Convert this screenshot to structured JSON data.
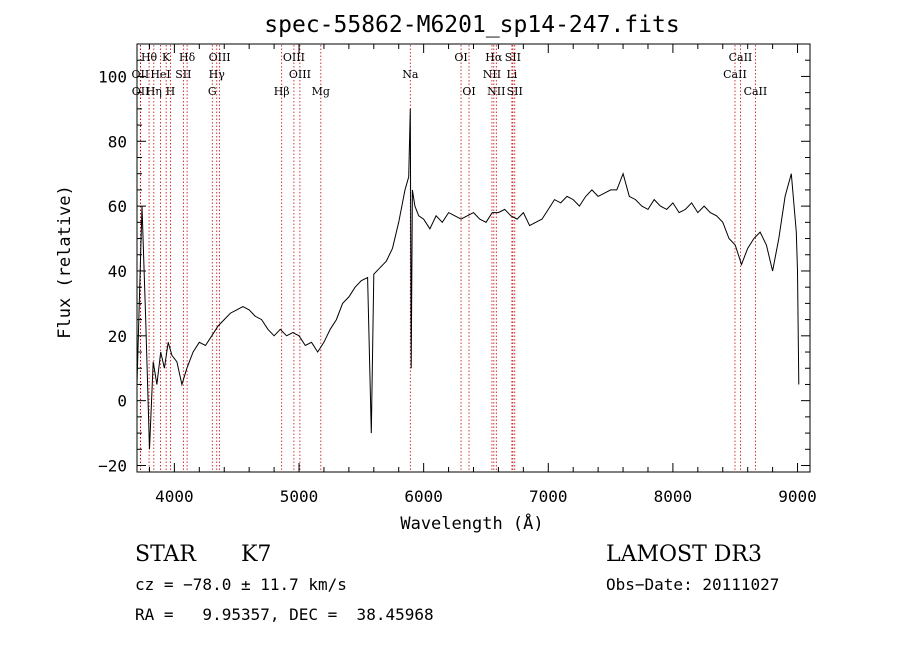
{
  "chart_data": {
    "type": "line",
    "title": "spec-55862-M6201_sp14-247.fits",
    "xlabel": "Wavelength (Å)",
    "ylabel": "Flux (relative)",
    "xlim": [
      3700,
      9100
    ],
    "ylim": [
      -22,
      110
    ],
    "xticks": [
      4000,
      5000,
      6000,
      7000,
      8000,
      9000
    ],
    "yticks": [
      -20,
      0,
      20,
      40,
      60,
      80,
      100
    ],
    "grid": false,
    "series": [
      {
        "name": "spectrum",
        "x": [
          3700,
          3740,
          3770,
          3800,
          3830,
          3860,
          3890,
          3920,
          3950,
          3980,
          4020,
          4060,
          4100,
          4150,
          4200,
          4250,
          4300,
          4350,
          4400,
          4450,
          4500,
          4550,
          4600,
          4650,
          4700,
          4750,
          4800,
          4850,
          4900,
          4950,
          5000,
          5050,
          5100,
          5150,
          5200,
          5250,
          5300,
          5350,
          5400,
          5450,
          5500,
          5550,
          5580,
          5600,
          5650,
          5700,
          5750,
          5800,
          5850,
          5880,
          5893,
          5900,
          5910,
          5930,
          5960,
          6000,
          6050,
          6100,
          6150,
          6200,
          6250,
          6300,
          6350,
          6400,
          6450,
          6500,
          6550,
          6600,
          6650,
          6700,
          6750,
          6800,
          6850,
          6900,
          6950,
          7000,
          7050,
          7100,
          7150,
          7200,
          7250,
          7300,
          7350,
          7400,
          7450,
          7500,
          7550,
          7600,
          7650,
          7700,
          7750,
          7800,
          7850,
          7900,
          7950,
          8000,
          8050,
          8100,
          8150,
          8200,
          8250,
          8300,
          8350,
          8400,
          8450,
          8500,
          8550,
          8600,
          8650,
          8700,
          8750,
          8800,
          8850,
          8900,
          8950,
          8990,
          9000,
          9010
        ],
        "values": [
          5,
          60,
          25,
          -15,
          12,
          5,
          15,
          10,
          18,
          14,
          12,
          5,
          10,
          15,
          18,
          17,
          20,
          23,
          25,
          27,
          28,
          29,
          28,
          26,
          25,
          22,
          20,
          22,
          20,
          21,
          20,
          17,
          18,
          15,
          18,
          22,
          25,
          30,
          32,
          35,
          37,
          38,
          -10,
          39,
          41,
          43,
          47,
          55,
          65,
          69,
          90,
          10,
          65,
          60,
          57,
          56,
          53,
          57,
          55,
          58,
          57,
          56,
          57,
          58,
          56,
          55,
          58,
          58,
          59,
          57,
          56,
          58,
          54,
          55,
          56,
          59,
          62,
          61,
          63,
          62,
          60,
          63,
          65,
          63,
          64,
          65,
          65,
          70,
          63,
          62,
          60,
          59,
          62,
          60,
          59,
          61,
          58,
          59,
          61,
          58,
          60,
          58,
          57,
          55,
          50,
          48,
          42,
          47,
          50,
          52,
          48,
          40,
          50,
          63,
          70,
          52,
          40,
          5
        ]
      }
    ],
    "line_markers": [
      {
        "label": "Hθ",
        "x": 3797,
        "row": 1
      },
      {
        "label": "K",
        "x": 3934,
        "row": 1
      },
      {
        "label": "Hδ",
        "x": 4102,
        "row": 1
      },
      {
        "label": "OIII",
        "x": 4363,
        "row": 1
      },
      {
        "label": "OIII",
        "x": 4959,
        "row": 1
      },
      {
        "label": "Na",
        "x": 5893,
        "row": 2
      },
      {
        "label": "OI",
        "x": 6300,
        "row": 1
      },
      {
        "label": "Hα",
        "x": 6563,
        "row": 1
      },
      {
        "label": "SII",
        "x": 6716,
        "row": 1
      },
      {
        "label": "CaII",
        "x": 8542,
        "row": 1
      },
      {
        "label": "OII",
        "x": 3727,
        "row": 2
      },
      {
        "label": "HeI",
        "x": 3889,
        "row": 2
      },
      {
        "label": "SII",
        "x": 4072,
        "row": 2
      },
      {
        "label": "Hγ",
        "x": 4340,
        "row": 2
      },
      {
        "label": "OIII",
        "x": 5007,
        "row": 2
      },
      {
        "label": "NII",
        "x": 6548,
        "row": 2
      },
      {
        "label": "Li",
        "x": 6708,
        "row": 2
      },
      {
        "label": "CaII",
        "x": 8498,
        "row": 2
      },
      {
        "label": "OII",
        "x": 3729,
        "row": 3
      },
      {
        "label": "Hη",
        "x": 3835,
        "row": 3
      },
      {
        "label": "H",
        "x": 3968,
        "row": 3
      },
      {
        "label": "G",
        "x": 4304,
        "row": 3
      },
      {
        "label": "Hβ",
        "x": 4861,
        "row": 3
      },
      {
        "label": "Mg",
        "x": 5175,
        "row": 3
      },
      {
        "label": "OI",
        "x": 6364,
        "row": 3
      },
      {
        "label": "NII",
        "x": 6583,
        "row": 3
      },
      {
        "label": "SII",
        "x": 6731,
        "row": 3
      },
      {
        "label": "CaII",
        "x": 8662,
        "row": 3
      }
    ]
  },
  "info": {
    "class": "STAR",
    "subclass": "K7",
    "survey": "LAMOST DR3",
    "cz": "cz = −78.0 ± 11.7 km/s",
    "obs_date": "Obs−Date: 20111027",
    "coords": "RA =   9.95357, DEC =  38.45968"
  },
  "colors": {
    "spectrum": "#000000",
    "marker": "#cc0000",
    "axis": "#000000"
  }
}
